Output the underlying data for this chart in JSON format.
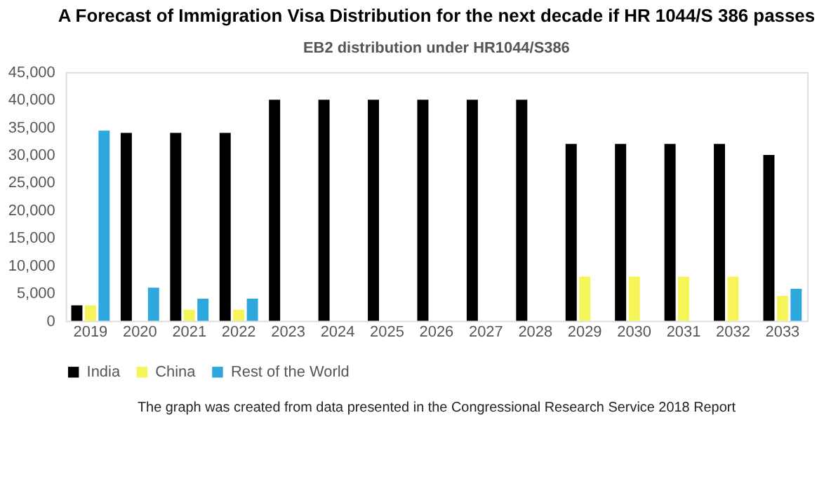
{
  "chart_data": {
    "type": "bar",
    "title": "A Forecast of Immigration Visa Distribution for the next decade if HR 1044/S 386 passes",
    "subtitle": "EB2 distribution under HR1044/S386",
    "categories": [
      "2019",
      "2020",
      "2021",
      "2022",
      "2023",
      "2024",
      "2025",
      "2026",
      "2027",
      "2028",
      "2029",
      "2030",
      "2031",
      "2032",
      "2033"
    ],
    "series": [
      {
        "name": "India",
        "color": "#000000",
        "values": [
          2800,
          34000,
          34000,
          34000,
          40000,
          40000,
          40000,
          40000,
          40000,
          40000,
          32000,
          32000,
          32000,
          32000,
          30000
        ]
      },
      {
        "name": "China",
        "color": "#f5f55a",
        "values": [
          2800,
          0,
          2000,
          2000,
          0,
          0,
          0,
          0,
          0,
          0,
          8000,
          8000,
          8000,
          8000,
          4500
        ]
      },
      {
        "name": "Rest of the World",
        "color": "#2ea8dc",
        "values": [
          34400,
          6000,
          4000,
          4000,
          0,
          0,
          0,
          0,
          0,
          0,
          0,
          0,
          0,
          0,
          5800
        ]
      }
    ],
    "ylim": [
      0,
      45000
    ],
    "yticks": [
      {
        "value": 0,
        "label": "0"
      },
      {
        "value": 5000,
        "label": "5,000"
      },
      {
        "value": 10000,
        "label": "10,000"
      },
      {
        "value": 15000,
        "label": "15,000"
      },
      {
        "value": 20000,
        "label": "20,000"
      },
      {
        "value": 25000,
        "label": "25,000"
      },
      {
        "value": 30000,
        "label": "30,000"
      },
      {
        "value": 35000,
        "label": "35,000"
      },
      {
        "value": 40000,
        "label": "40,000"
      },
      {
        "value": 45000,
        "label": "45,000"
      }
    ],
    "grid": false,
    "legend": "bottom",
    "annotations": [
      "The graph was created from data presented in the Congressional Research Service 2018 Report"
    ]
  }
}
